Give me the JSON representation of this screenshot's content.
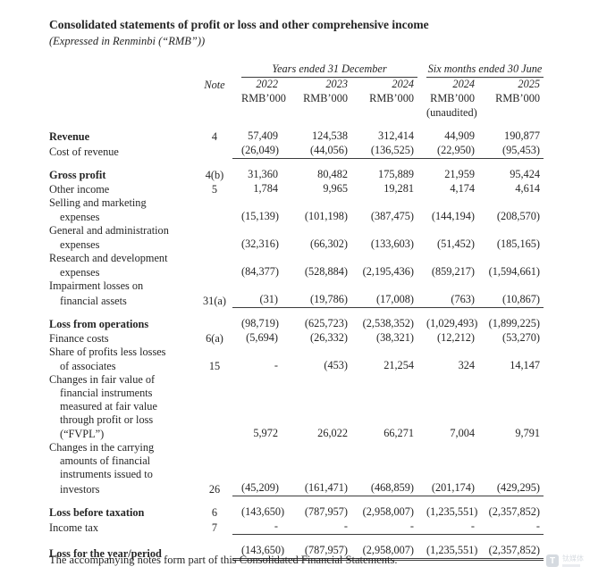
{
  "page": {
    "title": "Consolidated statements of profit or loss and other comprehensive income",
    "subtitle": "(Expressed in Renminbi (“RMB”))",
    "footer": "The accompanying notes form part of this Consolidated Financial Statements."
  },
  "table": {
    "note_header": "Note",
    "group_headers": [
      {
        "label": "Years ended 31 December",
        "span": 3
      },
      {
        "label": "Six months ended 30 June",
        "span": 2
      }
    ],
    "columns": [
      {
        "year": "2022",
        "unit": "RMB’000",
        "sub": ""
      },
      {
        "year": "2023",
        "unit": "RMB’000",
        "sub": ""
      },
      {
        "year": "2024",
        "unit": "RMB’000",
        "sub": ""
      },
      {
        "year": "2024",
        "unit": "RMB’000",
        "sub": "(unaudited)"
      },
      {
        "year": "2025",
        "unit": "RMB’000",
        "sub": ""
      }
    ],
    "rows": [
      {
        "lines": [
          "Revenue"
        ],
        "bold": true,
        "note": "4",
        "values": [
          "57,409",
          "124,538",
          "312,414",
          "44,909",
          "190,877"
        ],
        "underline": "none",
        "gap_before": false
      },
      {
        "lines": [
          "Cost of revenue"
        ],
        "bold": false,
        "note": "",
        "values": [
          "(26,049)",
          "(44,056)",
          "(136,525)",
          "(22,950)",
          "(95,453)"
        ],
        "underline": "single",
        "gap_before": false
      },
      {
        "lines": [
          "Gross profit"
        ],
        "bold": true,
        "note": "4(b)",
        "values": [
          "31,360",
          "80,482",
          "175,889",
          "21,959",
          "95,424"
        ],
        "underline": "none",
        "gap_before": true
      },
      {
        "lines": [
          "Other income"
        ],
        "bold": false,
        "note": "5",
        "values": [
          "1,784",
          "9,965",
          "19,281",
          "4,174",
          "4,614"
        ],
        "underline": "none",
        "gap_before": false
      },
      {
        "lines": [
          "Selling and marketing",
          "expenses"
        ],
        "bold": false,
        "note": "",
        "values": [
          "(15,139)",
          "(101,198)",
          "(387,475)",
          "(144,194)",
          "(208,570)"
        ],
        "underline": "none",
        "gap_before": false
      },
      {
        "lines": [
          "General and administration",
          "expenses"
        ],
        "bold": false,
        "note": "",
        "values": [
          "(32,316)",
          "(66,302)",
          "(133,603)",
          "(51,452)",
          "(185,165)"
        ],
        "underline": "none",
        "gap_before": false
      },
      {
        "lines": [
          "Research and development",
          "expenses"
        ],
        "bold": false,
        "note": "",
        "values": [
          "(84,377)",
          "(528,884)",
          "(2,195,436)",
          "(859,217)",
          "(1,594,661)"
        ],
        "underline": "none",
        "gap_before": false
      },
      {
        "lines": [
          "Impairment losses on",
          "financial assets"
        ],
        "bold": false,
        "note": "31(a)",
        "values": [
          "(31)",
          "(19,786)",
          "(17,008)",
          "(763)",
          "(10,867)"
        ],
        "underline": "single",
        "gap_before": false
      },
      {
        "lines": [
          "Loss from operations"
        ],
        "bold": true,
        "note": "",
        "values": [
          "(98,719)",
          "(625,723)",
          "(2,538,352)",
          "(1,029,493)",
          "(1,899,225)"
        ],
        "underline": "none",
        "gap_before": true
      },
      {
        "lines": [
          "Finance costs"
        ],
        "bold": false,
        "note": "6(a)",
        "values": [
          "(5,694)",
          "(26,332)",
          "(38,321)",
          "(12,212)",
          "(53,270)"
        ],
        "underline": "none",
        "gap_before": false
      },
      {
        "lines": [
          "Share of profits less losses",
          "of associates"
        ],
        "bold": false,
        "note": "15",
        "values": [
          "-",
          "(453)",
          "21,254",
          "324",
          "14,147"
        ],
        "underline": "none",
        "gap_before": false
      },
      {
        "lines": [
          "Changes in fair value of",
          "financial  instruments",
          "measured at fair value",
          "through profit or loss",
          "(“FVPL”)"
        ],
        "bold": false,
        "note": "",
        "values": [
          "5,972",
          "26,022",
          "66,271",
          "7,004",
          "9,791"
        ],
        "underline": "none",
        "gap_before": false
      },
      {
        "lines": [
          "Changes in the carrying",
          "amounts of financial",
          "instruments issued to",
          "investors"
        ],
        "bold": false,
        "note": "26",
        "values": [
          "(45,209)",
          "(161,471)",
          "(468,859)",
          "(201,174)",
          "(429,295)"
        ],
        "underline": "single",
        "gap_before": false
      },
      {
        "lines": [
          "Loss before taxation"
        ],
        "bold": true,
        "note": "6",
        "values": [
          "(143,650)",
          "(787,957)",
          "(2,958,007)",
          "(1,235,551)",
          "(2,357,852)"
        ],
        "underline": "none",
        "gap_before": true
      },
      {
        "lines": [
          "Income tax"
        ],
        "bold": false,
        "note": "7",
        "values": [
          "-",
          "-",
          "-",
          "-",
          "-"
        ],
        "underline": "single",
        "gap_before": false
      },
      {
        "lines": [
          "Loss for the year/period"
        ],
        "bold": true,
        "note": "",
        "values": [
          "(143,650)",
          "(787,957)",
          "(2,958,007)",
          "(1,235,551)",
          "(2,357,852)"
        ],
        "underline": "double",
        "gap_before": true
      }
    ]
  },
  "watermark": {
    "icon_letter": "T",
    "label": "钛媒体"
  }
}
